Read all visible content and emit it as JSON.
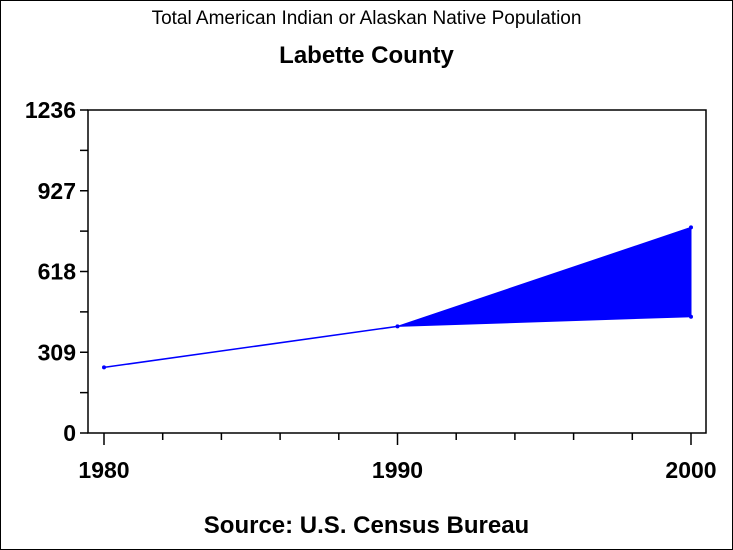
{
  "chart_data": {
    "type": "line",
    "title": "Total American Indian or Alaskan Native Population",
    "subtitle": "Labette County",
    "footnote": "Source: U.S. Census Bureau",
    "xlabel": "",
    "ylabel": "",
    "xlim": [
      1980,
      2000
    ],
    "ylim": [
      0,
      1236
    ],
    "x_ticks": [
      1980,
      1990,
      2000
    ],
    "x_tick_labels": [
      "1980",
      "1990",
      "2000"
    ],
    "y_ticks": [
      0,
      309,
      618,
      927,
      1236
    ],
    "y_tick_labels": [
      "0",
      "309",
      "618",
      "927",
      "1236"
    ],
    "grid": false,
    "series": [
      {
        "name": "Population",
        "x": [
          1980,
          1990
        ],
        "values": [
          251,
          408
        ],
        "color": "#0000ff"
      }
    ],
    "projection_band": {
      "x": [
        1990,
        2000
      ],
      "upper": [
        408,
        787
      ],
      "lower": [
        408,
        445
      ],
      "color": "#0000ff"
    }
  }
}
